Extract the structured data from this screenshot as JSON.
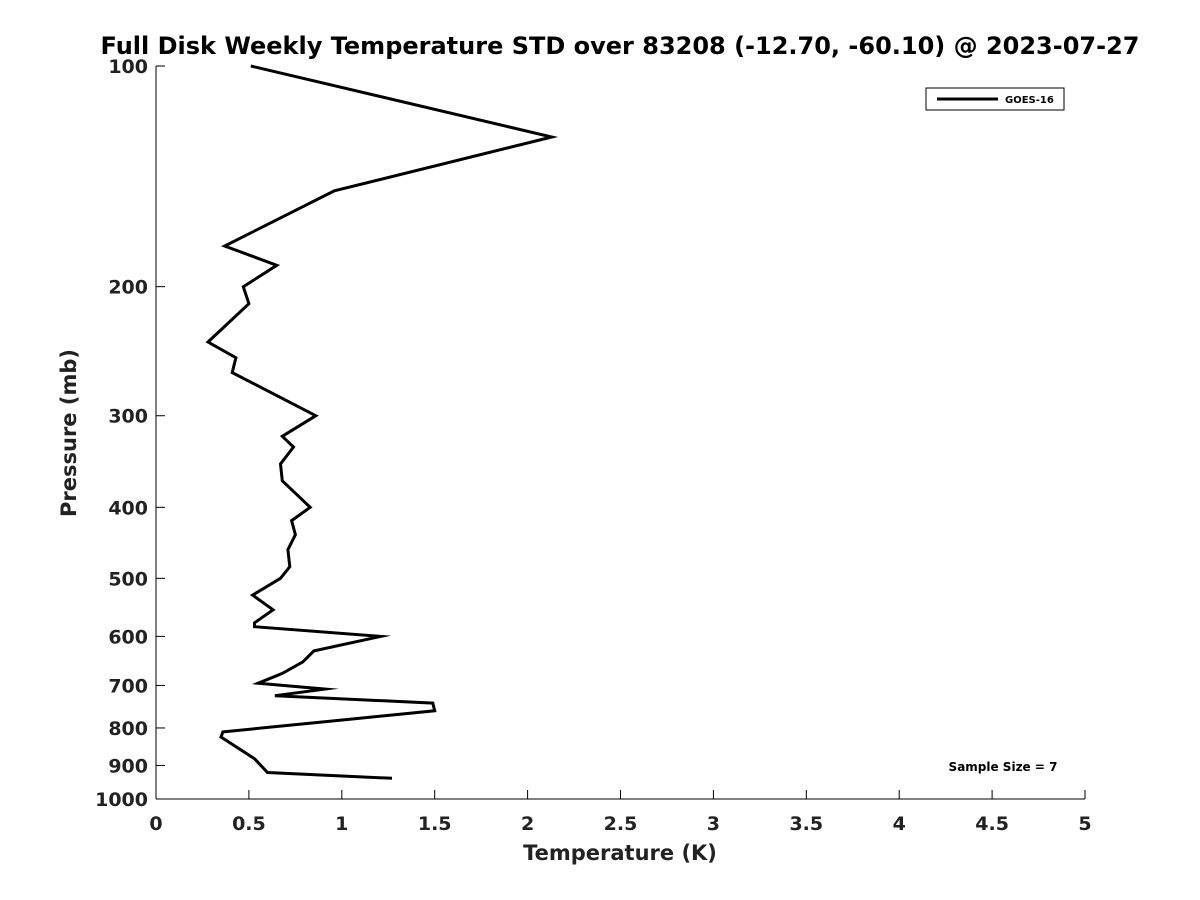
{
  "chart_data": {
    "type": "line",
    "title": "Full Disk Weekly Temperature STD over 83208 (-12.70, -60.10) @ 2023-07-27",
    "xlabel": "Temperature (K)",
    "ylabel": "Pressure (mb)",
    "xlim": [
      0,
      5
    ],
    "ylim": [
      100,
      1000
    ],
    "y_scale": "log",
    "y_reversed": true,
    "x_ticks": [
      "0",
      "0.5",
      "1",
      "1.5",
      "2",
      "2.5",
      "3",
      "3.5",
      "4",
      "4.5",
      "5"
    ],
    "y_ticks": [
      "100",
      "200",
      "300",
      "400",
      "500",
      "600",
      "700",
      "800",
      "900",
      "1000"
    ],
    "grid": false,
    "legend_position": "top-right",
    "series": [
      {
        "name": "GOES-16",
        "color": "#000000",
        "x": [
          0.51,
          2.13,
          0.96,
          0.37,
          0.65,
          0.47,
          0.5,
          0.28,
          0.43,
          0.41,
          0.86,
          0.68,
          0.74,
          0.67,
          0.68,
          0.83,
          0.73,
          0.75,
          0.71,
          0.72,
          0.67,
          0.52,
          0.63,
          0.53,
          0.53,
          1.21,
          0.85,
          0.79,
          0.68,
          0.55,
          0.91,
          0.64,
          1.49,
          1.5,
          1.03,
          0.36,
          0.35,
          0.53,
          0.6,
          1.27
        ],
        "y": [
          100,
          125,
          148,
          176,
          187,
          200,
          211,
          238,
          250,
          262,
          300,
          320,
          331,
          349,
          368,
          400,
          417,
          436,
          457,
          482,
          500,
          527,
          552,
          575,
          582,
          600,
          628,
          650,
          674,
          695,
          708,
          723,
          740,
          758,
          779,
          810,
          823,
          881,
          920,
          937
        ]
      }
    ],
    "annotations": [
      "Sample Size = 7"
    ]
  }
}
